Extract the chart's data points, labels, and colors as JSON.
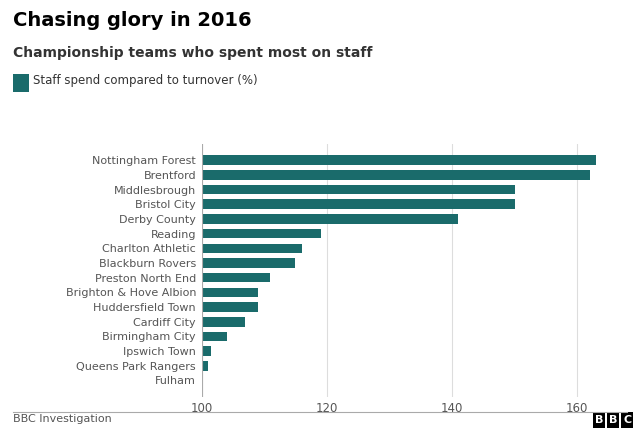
{
  "title": "Chasing glory in 2016",
  "subtitle": "Championship teams who spent most on staff",
  "legend_label": "Staff spend compared to turnover (%)",
  "bar_color": "#1a6b6b",
  "background_color": "#ffffff",
  "xlim": [
    100,
    168
  ],
  "xticks": [
    100,
    120,
    140,
    160
  ],
  "footer_left": "BBC Investigation",
  "footer_right": "BBC",
  "clubs": [
    "Nottingham Forest",
    "Brentford",
    "Middlesbrough",
    "Bristol City",
    "Derby County",
    "Reading",
    "Charlton Athletic",
    "Blackburn Rovers",
    "Preston North End",
    "Brighton & Hove Albion",
    "Huddersfield Town",
    "Cardiff City",
    "Birmingham City",
    "Ipswich Town",
    "Queens Park Rangers",
    "Fulham"
  ],
  "values": [
    163,
    162,
    150,
    150,
    141,
    119,
    116,
    115,
    111,
    109,
    109,
    107,
    104,
    101.5,
    101,
    100
  ]
}
